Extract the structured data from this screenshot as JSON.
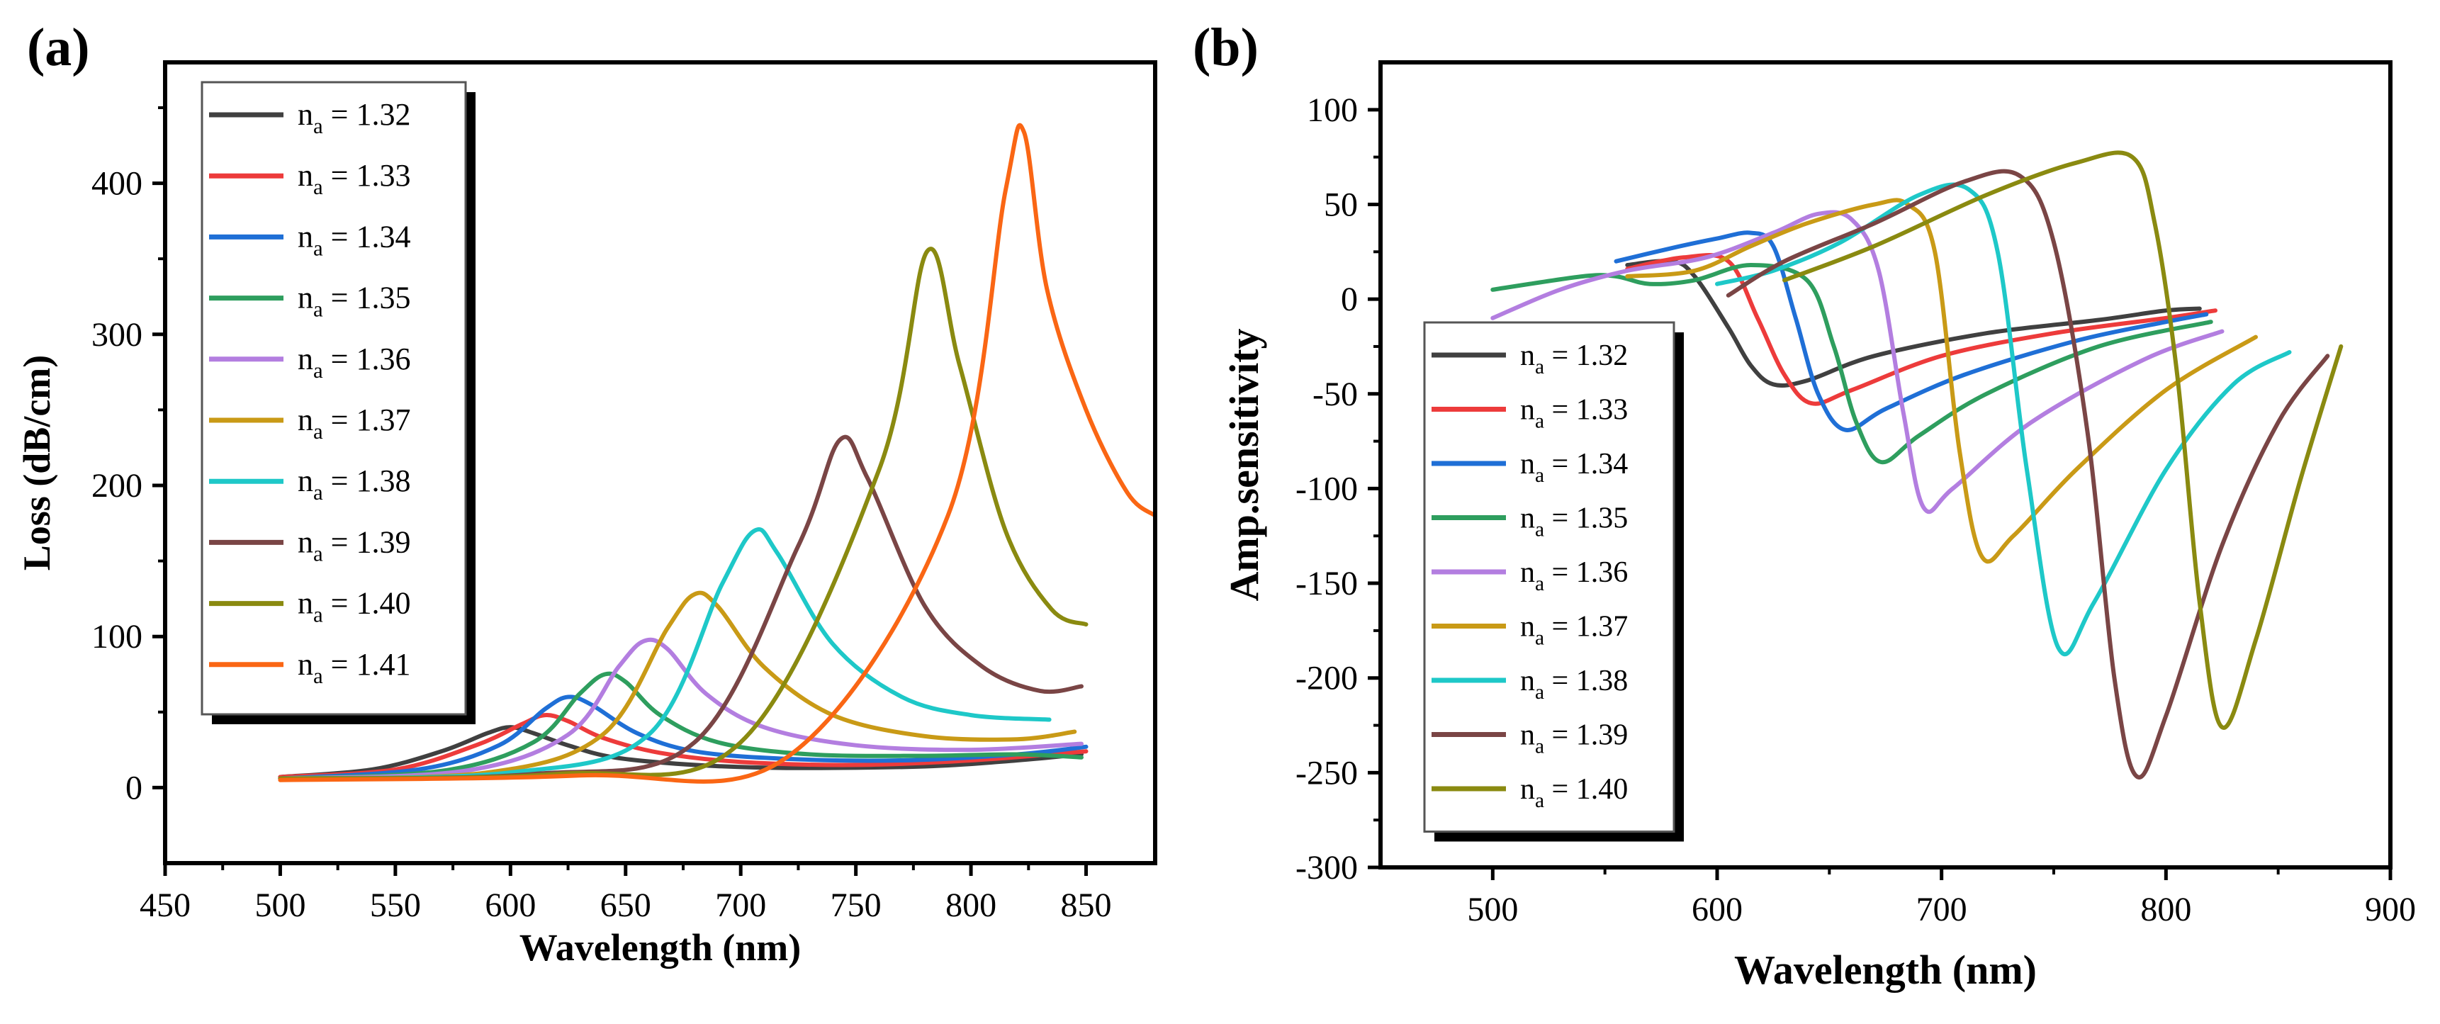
{
  "chart_data": [
    {
      "type": "line",
      "panel_label": "(a)",
      "title": "",
      "xlabel": "Wavelength (nm)",
      "ylabel": "Loss (dB/cm)",
      "xlim": [
        450,
        880
      ],
      "ylim": [
        -50,
        480
      ],
      "xticks": [
        450,
        500,
        550,
        600,
        650,
        700,
        750,
        800,
        850
      ],
      "yticks": [
        0,
        100,
        200,
        300,
        400
      ],
      "grid": false,
      "legend_position": "top-left",
      "series": [
        {
          "name": "n",
          "sub": "a",
          "value": " = 1.32",
          "color": "#404040",
          "points": [
            [
              500,
              7
            ],
            [
              540,
              12
            ],
            [
              570,
              24
            ],
            [
              590,
              36
            ],
            [
              600,
              40
            ],
            [
              610,
              36
            ],
            [
              625,
              28
            ],
            [
              645,
              20
            ],
            [
              680,
              15
            ],
            [
              720,
              13
            ],
            [
              780,
              14
            ],
            [
              820,
              18
            ],
            [
              848,
              22
            ]
          ]
        },
        {
          "name": "n",
          "sub": "a",
          "value": " = 1.33",
          "color": "#ed3b3b",
          "points": [
            [
              500,
              7
            ],
            [
              550,
              12
            ],
            [
              585,
              28
            ],
            [
              605,
              42
            ],
            [
              615,
              48
            ],
            [
              625,
              44
            ],
            [
              640,
              33
            ],
            [
              665,
              23
            ],
            [
              700,
              17
            ],
            [
              750,
              15
            ],
            [
              800,
              18
            ],
            [
              850,
              24
            ]
          ]
        },
        {
          "name": "n",
          "sub": "a",
          "value": " = 1.34",
          "color": "#1f6fd6",
          "points": [
            [
              500,
              6
            ],
            [
              560,
              12
            ],
            [
              595,
              28
            ],
            [
              615,
              52
            ],
            [
              625,
              60
            ],
            [
              635,
              55
            ],
            [
              655,
              36
            ],
            [
              680,
              24
            ],
            [
              720,
              19
            ],
            [
              770,
              18
            ],
            [
              820,
              22
            ],
            [
              850,
              27
            ]
          ]
        },
        {
          "name": "n",
          "sub": "a",
          "value": " = 1.35",
          "color": "#2e9e5e",
          "points": [
            [
              500,
              6
            ],
            [
              570,
              11
            ],
            [
              610,
              30
            ],
            [
              630,
              62
            ],
            [
              641,
              75
            ],
            [
              650,
              70
            ],
            [
              665,
              48
            ],
            [
              690,
              30
            ],
            [
              730,
              22
            ],
            [
              780,
              21
            ],
            [
              820,
              22
            ],
            [
              848,
              20
            ]
          ]
        },
        {
          "name": "n",
          "sub": "a",
          "value": " = 1.36",
          "color": "#b37ee0",
          "points": [
            [
              500,
              6
            ],
            [
              580,
              11
            ],
            [
              625,
              35
            ],
            [
              647,
              80
            ],
            [
              658,
              97
            ],
            [
              668,
              92
            ],
            [
              685,
              62
            ],
            [
              710,
              40
            ],
            [
              750,
              28
            ],
            [
              800,
              25
            ],
            [
              848,
              29
            ]
          ]
        },
        {
          "name": "n",
          "sub": "a",
          "value": " = 1.37",
          "color": "#c99a16",
          "points": [
            [
              500,
              6
            ],
            [
              590,
              10
            ],
            [
              640,
              35
            ],
            [
              668,
              105
            ],
            [
              680,
              128
            ],
            [
              690,
              120
            ],
            [
              710,
              80
            ],
            [
              740,
              48
            ],
            [
              780,
              34
            ],
            [
              820,
              32
            ],
            [
              845,
              37
            ]
          ]
        },
        {
          "name": "n",
          "sub": "a",
          "value": " = 1.38",
          "color": "#1ec8c8",
          "points": [
            [
              500,
              6
            ],
            [
              600,
              10
            ],
            [
              660,
              35
            ],
            [
              692,
              135
            ],
            [
              706,
              170
            ],
            [
              716,
              155
            ],
            [
              740,
              95
            ],
            [
              770,
              60
            ],
            [
              800,
              48
            ],
            [
              834,
              45
            ]
          ]
        },
        {
          "name": "n",
          "sub": "a",
          "value": " = 1.39",
          "color": "#7a4545",
          "points": [
            [
              500,
              6
            ],
            [
              610,
              9
            ],
            [
              680,
              30
            ],
            [
              725,
              160
            ],
            [
              743,
              230
            ],
            [
              755,
              205
            ],
            [
              780,
              120
            ],
            [
              805,
              80
            ],
            [
              830,
              64
            ],
            [
              848,
              67
            ]
          ]
        },
        {
          "name": "n",
          "sub": "a",
          "value": " = 1.40",
          "color": "#8a8a10",
          "points": [
            [
              500,
              6
            ],
            [
              620,
              9
            ],
            [
              700,
              30
            ],
            [
              760,
              210
            ],
            [
              781,
              355
            ],
            [
              795,
              280
            ],
            [
              815,
              170
            ],
            [
              835,
              118
            ],
            [
              850,
              108
            ]
          ]
        },
        {
          "name": "n",
          "sub": "a",
          "value": " = 1.41",
          "color": "#fa6614",
          "points": [
            [
              500,
              5
            ],
            [
              630,
              8
            ],
            [
              720,
              20
            ],
            [
              790,
              180
            ],
            [
              815,
              395
            ],
            [
              823,
              434
            ],
            [
              833,
              330
            ],
            [
              850,
              250
            ],
            [
              868,
              195
            ],
            [
              880,
              180
            ]
          ]
        }
      ]
    },
    {
      "type": "line",
      "panel_label": "(b)",
      "title": "",
      "xlabel": "Wavelength (nm)",
      "ylabel": "Amp.sensitivity",
      "xlim": [
        450,
        900
      ],
      "ylim": [
        -300,
        125
      ],
      "xticks": [
        500,
        600,
        700,
        800,
        900
      ],
      "yticks": [
        100,
        50,
        0,
        -50,
        -100,
        -150,
        -200,
        -250,
        -300
      ],
      "grid": false,
      "legend_position": "bottom-left",
      "series": [
        {
          "name": "n",
          "sub": "a",
          "value": " = 1.32",
          "color": "#404040",
          "points": [
            [
              560,
              18
            ],
            [
              580,
              20
            ],
            [
              590,
              12
            ],
            [
              605,
              -15
            ],
            [
              615,
              -35
            ],
            [
              625,
              -45
            ],
            [
              640,
              -43
            ],
            [
              670,
              -30
            ],
            [
              720,
              -18
            ],
            [
              770,
              -11
            ],
            [
              800,
              -6
            ],
            [
              815,
              -5
            ]
          ]
        },
        {
          "name": "n",
          "sub": "a",
          "value": " = 1.33",
          "color": "#ed3b3b",
          "points": [
            [
              560,
              16
            ],
            [
              585,
              22
            ],
            [
              605,
              20
            ],
            [
              618,
              -10
            ],
            [
              630,
              -40
            ],
            [
              642,
              -55
            ],
            [
              660,
              -48
            ],
            [
              700,
              -30
            ],
            [
              750,
              -18
            ],
            [
              800,
              -10
            ],
            [
              822,
              -6
            ]
          ]
        },
        {
          "name": "n",
          "sub": "a",
          "value": " = 1.34",
          "color": "#1f6fd6",
          "points": [
            [
              555,
              20
            ],
            [
              580,
              27
            ],
            [
              600,
              32
            ],
            [
              615,
              35
            ],
            [
              625,
              28
            ],
            [
              635,
              -10
            ],
            [
              645,
              -50
            ],
            [
              657,
              -69
            ],
            [
              675,
              -58
            ],
            [
              710,
              -40
            ],
            [
              760,
              -22
            ],
            [
              800,
              -12
            ],
            [
              818,
              -8
            ]
          ]
        },
        {
          "name": "n",
          "sub": "a",
          "value": " = 1.35",
          "color": "#2e9e5e",
          "points": [
            [
              500,
              5
            ],
            [
              540,
              12
            ],
            [
              555,
              12
            ],
            [
              570,
              8
            ],
            [
              590,
              10
            ],
            [
              615,
              18
            ],
            [
              640,
              10
            ],
            [
              652,
              -25
            ],
            [
              662,
              -65
            ],
            [
              673,
              -86
            ],
            [
              690,
              -72
            ],
            [
              720,
              -50
            ],
            [
              770,
              -25
            ],
            [
              820,
              -12
            ]
          ]
        },
        {
          "name": "n",
          "sub": "a",
          "value": " = 1.36",
          "color": "#b37ee0",
          "points": [
            [
              500,
              -10
            ],
            [
              530,
              5
            ],
            [
              560,
              15
            ],
            [
              595,
              22
            ],
            [
              625,
              35
            ],
            [
              645,
              45
            ],
            [
              660,
              42
            ],
            [
              672,
              15
            ],
            [
              683,
              -60
            ],
            [
              692,
              -110
            ],
            [
              705,
              -100
            ],
            [
              740,
              -65
            ],
            [
              790,
              -32
            ],
            [
              825,
              -17
            ]
          ]
        },
        {
          "name": "n",
          "sub": "a",
          "value": " = 1.37",
          "color": "#c99a16",
          "points": [
            [
              560,
              12
            ],
            [
              590,
              15
            ],
            [
              615,
              28
            ],
            [
              640,
              40
            ],
            [
              670,
              50
            ],
            [
              685,
              50
            ],
            [
              697,
              25
            ],
            [
              708,
              -80
            ],
            [
              718,
              -136
            ],
            [
              732,
              -125
            ],
            [
              760,
              -90
            ],
            [
              800,
              -48
            ],
            [
              840,
              -20
            ]
          ]
        },
        {
          "name": "n",
          "sub": "a",
          "value": " = 1.38",
          "color": "#1ec8c8",
          "points": [
            [
              600,
              8
            ],
            [
              625,
              15
            ],
            [
              655,
              30
            ],
            [
              690,
              55
            ],
            [
              712,
              58
            ],
            [
              725,
              25
            ],
            [
              738,
              -90
            ],
            [
              752,
              -184
            ],
            [
              768,
              -160
            ],
            [
              800,
              -90
            ],
            [
              830,
              -45
            ],
            [
              855,
              -28
            ]
          ]
        },
        {
          "name": "n",
          "sub": "a",
          "value": " = 1.39",
          "color": "#7a4545",
          "points": [
            [
              605,
              2
            ],
            [
              630,
              20
            ],
            [
              670,
              40
            ],
            [
              710,
              62
            ],
            [
              735,
              65
            ],
            [
              750,
              30
            ],
            [
              765,
              -70
            ],
            [
              777,
              -200
            ],
            [
              787,
              -252
            ],
            [
              800,
              -220
            ],
            [
              825,
              -130
            ],
            [
              850,
              -65
            ],
            [
              872,
              -30
            ]
          ]
        },
        {
          "name": "n",
          "sub": "a",
          "value": " = 1.40",
          "color": "#8a8a10",
          "points": [
            [
              630,
              10
            ],
            [
              670,
              28
            ],
            [
              720,
              55
            ],
            [
              760,
              72
            ],
            [
              785,
              75
            ],
            [
              795,
              40
            ],
            [
              805,
              -40
            ],
            [
              815,
              -160
            ],
            [
              825,
              -226
            ],
            [
              840,
              -180
            ],
            [
              860,
              -95
            ],
            [
              878,
              -25
            ]
          ]
        }
      ]
    }
  ]
}
